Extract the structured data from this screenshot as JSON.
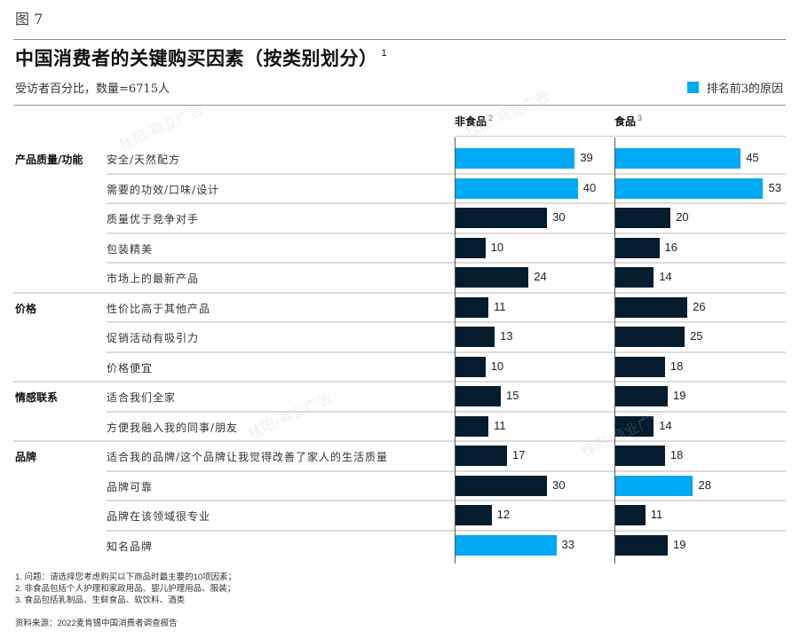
{
  "figure_label": "图 7",
  "title": "中国消费者的关键购买因素（按类别划分）",
  "title_footnote": "1",
  "subtitle": "受访者百分比，数量=6715人",
  "legend": {
    "label": "排名前3的原因",
    "color": "#00a9f4"
  },
  "columns": [
    {
      "label": "非食品",
      "footnote": "2"
    },
    {
      "label": "食品",
      "footnote": "3"
    }
  ],
  "colors": {
    "top3": "#00a9f4",
    "other": "#051c2c",
    "axis": "#555555",
    "separator": "#dcdcdc"
  },
  "groups": [
    {
      "label": "产品质量/功能",
      "items": [
        {
          "label": "安全/天然配方",
          "non_food": 39,
          "food": 45,
          "non_food_top3": true,
          "food_top3": true
        },
        {
          "label": "需要的功效/口味/设计",
          "non_food": 40,
          "food": 53,
          "non_food_top3": true,
          "food_top3": true
        },
        {
          "label": "质量优于竞争对手",
          "non_food": 30,
          "food": 20,
          "non_food_top3": false,
          "food_top3": false
        },
        {
          "label": "包装精美",
          "non_food": 10,
          "food": 16,
          "non_food_top3": false,
          "food_top3": false
        },
        {
          "label": "市场上的最新产品",
          "non_food": 24,
          "food": 14,
          "non_food_top3": false,
          "food_top3": false
        }
      ]
    },
    {
      "label": "价格",
      "items": [
        {
          "label": "性价比高于其他产品",
          "non_food": 11,
          "food": 26,
          "non_food_top3": false,
          "food_top3": false
        },
        {
          "label": "促销活动有吸引力",
          "non_food": 13,
          "food": 25,
          "non_food_top3": false,
          "food_top3": false
        },
        {
          "label": "价格便宜",
          "non_food": 10,
          "food": 18,
          "non_food_top3": false,
          "food_top3": false
        }
      ]
    },
    {
      "label": "情感联系",
      "items": [
        {
          "label": "适合我们全家",
          "non_food": 15,
          "food": 19,
          "non_food_top3": false,
          "food_top3": false
        },
        {
          "label": "方便我融入我的同事/朋友",
          "non_food": 11,
          "food": 14,
          "non_food_top3": false,
          "food_top3": false
        }
      ]
    },
    {
      "label": "品牌",
      "items": [
        {
          "label": "适合我的品牌/这个品牌让我觉得改善了家人的生活质量",
          "non_food": 17,
          "food": 18,
          "non_food_top3": false,
          "food_top3": false
        },
        {
          "label": "品牌可靠",
          "non_food": 30,
          "food": 28,
          "non_food_top3": false,
          "food_top3": true
        },
        {
          "label": "品牌在该领域很专业",
          "non_food": 12,
          "food": 11,
          "non_food_top3": false,
          "food_top3": false
        },
        {
          "label": "知名品牌",
          "non_food": 33,
          "food": 19,
          "non_food_top3": true,
          "food_top3": false
        }
      ]
    }
  ],
  "footnotes": [
    "1. 问题：请选择您考虑购买以下商品时最主要的10项因素；",
    "2. 非食品包括个人护理和家政用品、婴儿护理用品、服装；",
    "3. 食品包括乳制品、生鲜食品、软饮料、酒类"
  ],
  "source": "资料来源：2022麦肯锡中国消费者调查报告",
  "watermark": "桂阳-商业广告",
  "chart_data": {
    "type": "bar",
    "orientation": "horizontal",
    "title": "中国消费者的关键购买因素（按类别划分）",
    "subtitle": "受访者百分比，数量=6715人",
    "categories": [
      "安全/天然配方",
      "需要的功效/口味/设计",
      "质量优于竞争对手",
      "包装精美",
      "市场上的最新产品",
      "性价比高于其他产品",
      "促销活动有吸引力",
      "价格便宜",
      "适合我们全家",
      "方便我融入我的同事/朋友",
      "适合我的品牌/这个品牌让我觉得改善了家人的生活质量",
      "品牌可靠",
      "品牌在该领域很专业",
      "知名品牌"
    ],
    "category_groups": [
      {
        "group": "产品质量/功能",
        "count": 5
      },
      {
        "group": "价格",
        "count": 3
      },
      {
        "group": "情感联系",
        "count": 2
      },
      {
        "group": "品牌",
        "count": 4
      }
    ],
    "series": [
      {
        "name": "非食品",
        "values": [
          39,
          40,
          30,
          10,
          24,
          11,
          13,
          10,
          15,
          11,
          17,
          30,
          12,
          33
        ]
      },
      {
        "name": "食品",
        "values": [
          45,
          53,
          20,
          16,
          14,
          26,
          25,
          18,
          19,
          14,
          18,
          28,
          11,
          19
        ]
      }
    ],
    "highlight": {
      "legend": "排名前3的原因",
      "非食品": [
        "安全/天然配方",
        "需要的功效/口味/设计",
        "知名品牌"
      ],
      "食品": [
        "安全/天然配方",
        "需要的功效/口味/设计",
        "品牌可靠"
      ]
    },
    "xlabel": "",
    "ylabel": "",
    "grid": false,
    "legend_position": "top-right",
    "data_labels": true
  }
}
